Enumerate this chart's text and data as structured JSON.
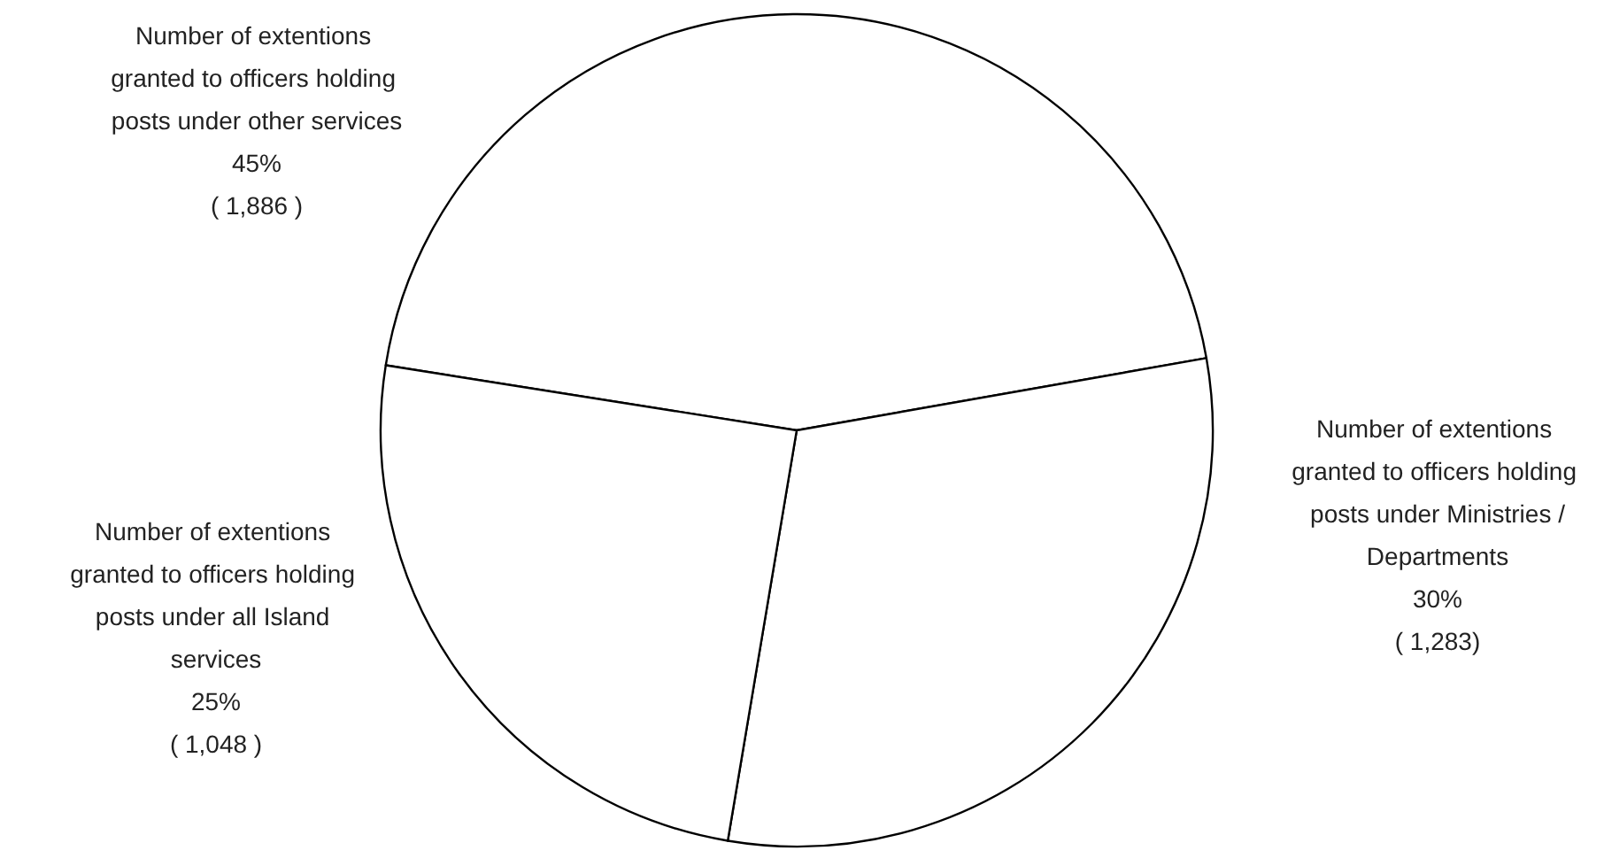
{
  "chart_data": {
    "type": "pie",
    "categories": [
      "Number of extentions granted to officers holding posts under other services",
      "Number of extentions granted to officers holding posts under Ministries /Departments",
      "Number of extentions granted to officers holding posts under all Island services"
    ],
    "values": [
      1886,
      1283,
      1048
    ],
    "value_labels": [
      "45%\n( 1,886 )",
      "30%\n( 1,283)",
      "25%\n( 1,048 )"
    ],
    "colors": [
      "#ffffff",
      "#ffffff",
      "#ffffff"
    ],
    "legend": false
  }
}
